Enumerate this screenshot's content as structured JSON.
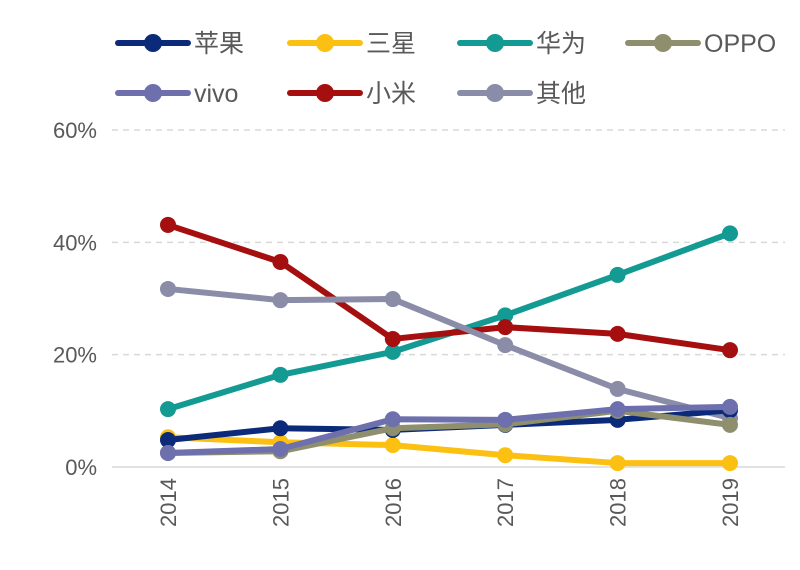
{
  "chart_data": {
    "type": "line",
    "x": [
      "2014",
      "2015",
      "2016",
      "2017",
      "2018",
      "2019"
    ],
    "ylim": [
      0,
      60
    ],
    "yticks": [
      "0%",
      "20%",
      "40%",
      "60%"
    ],
    "ytick_values": [
      0,
      20,
      40,
      60
    ],
    "grid": true,
    "legend_placement": "top",
    "series": [
      {
        "name": "苹果",
        "color": "#0b2b7a",
        "values": [
          4.8,
          6.9,
          6.6,
          7.5,
          8.4,
          10.1
        ]
      },
      {
        "name": "三星",
        "color": "#fbc012",
        "values": [
          5.3,
          4.4,
          3.9,
          2.1,
          0.7,
          0.7
        ]
      },
      {
        "name": "华为",
        "color": "#139a92",
        "values": [
          10.3,
          16.4,
          20.5,
          27.0,
          34.2,
          41.6
        ]
      },
      {
        "name": "OPPO",
        "color": "#8f8f6e",
        "values": [
          2.5,
          2.8,
          6.9,
          7.6,
          10.0,
          7.5
        ]
      },
      {
        "name": "vivo",
        "color": "#6e70ad",
        "values": [
          2.5,
          3.2,
          8.5,
          8.4,
          10.3,
          10.7
        ]
      },
      {
        "name": "小米",
        "color": "#a50f0f",
        "values": [
          43.1,
          36.5,
          22.8,
          24.9,
          23.7,
          20.8
        ]
      },
      {
        "name": "其他",
        "color": "#8a8ca8",
        "values": [
          31.7,
          29.7,
          29.9,
          21.7,
          13.9,
          8.7
        ]
      }
    ]
  }
}
